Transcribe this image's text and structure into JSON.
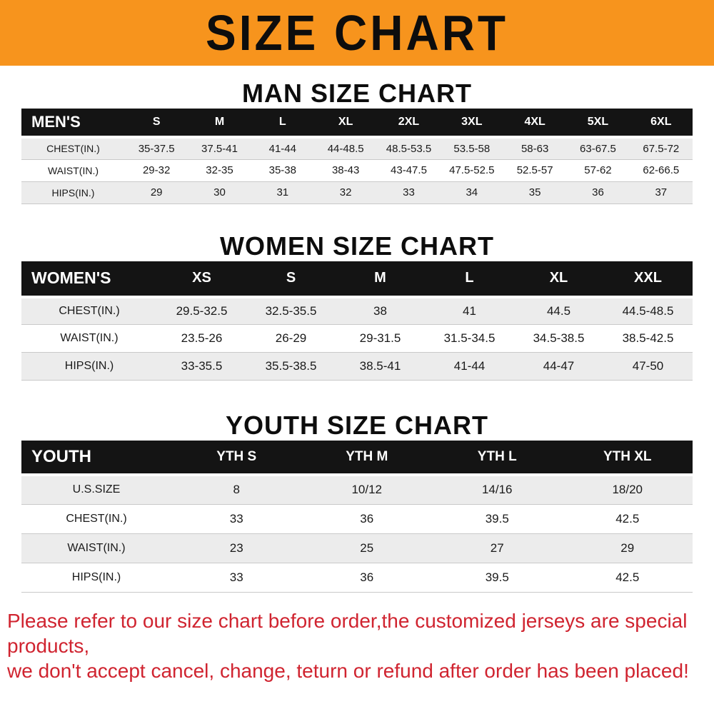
{
  "banner": {
    "title": "SIZE CHART"
  },
  "sections": [
    {
      "heading": "MAN SIZE CHART",
      "header": [
        "MEN'S",
        "S",
        "M",
        "L",
        "XL",
        "2XL",
        "3XL",
        "4XL",
        "5XL",
        "6XL"
      ],
      "rows": [
        [
          "CHEST(IN.)",
          "35-37.5",
          "37.5-41",
          "41-44",
          "44-48.5",
          "48.5-53.5",
          "53.5-58",
          "58-63",
          "63-67.5",
          "67.5-72"
        ],
        [
          "WAIST(IN.)",
          "29-32",
          "32-35",
          "35-38",
          "38-43",
          "43-47.5",
          "47.5-52.5",
          "52.5-57",
          "57-62",
          "62-66.5"
        ],
        [
          "HIPS(IN.)",
          "29",
          "30",
          "31",
          "32",
          "33",
          "34",
          "35",
          "36",
          "37"
        ]
      ]
    },
    {
      "heading": "WOMEN SIZE CHART",
      "header": [
        "WOMEN'S",
        "XS",
        "S",
        "M",
        "L",
        "XL",
        "XXL"
      ],
      "rows": [
        [
          "CHEST(IN.)",
          "29.5-32.5",
          "32.5-35.5",
          "38",
          "41",
          "44.5",
          "44.5-48.5"
        ],
        [
          "WAIST(IN.)",
          "23.5-26",
          "26-29",
          "29-31.5",
          "31.5-34.5",
          "34.5-38.5",
          "38.5-42.5"
        ],
        [
          "HIPS(IN.)",
          "33-35.5",
          "35.5-38.5",
          "38.5-41",
          "41-44",
          "44-47",
          "47-50"
        ]
      ]
    },
    {
      "heading": "YOUTH SIZE CHART",
      "header": [
        "YOUTH",
        "YTH S",
        "YTH M",
        "YTH L",
        "YTH XL"
      ],
      "rows": [
        [
          "U.S.SIZE",
          "8",
          "10/12",
          "14/16",
          "18/20"
        ],
        [
          "CHEST(IN.)",
          "33",
          "36",
          "39.5",
          "42.5"
        ],
        [
          "WAIST(IN.)",
          "23",
          "25",
          "27",
          "29"
        ],
        [
          "HIPS(IN.)",
          "33",
          "36",
          "39.5",
          "42.5"
        ]
      ]
    }
  ],
  "footer": {
    "line1": "Please refer to our size chart before order,the customized jerseys are special products,",
    "line2": "we don't accept cancel, change, teturn or refund after order has been placed!"
  },
  "colors": {
    "banner_bg": "#f7941d",
    "table_header_bg": "#141414",
    "row_stripe": "#ececec",
    "footer_text": "#d02430"
  }
}
